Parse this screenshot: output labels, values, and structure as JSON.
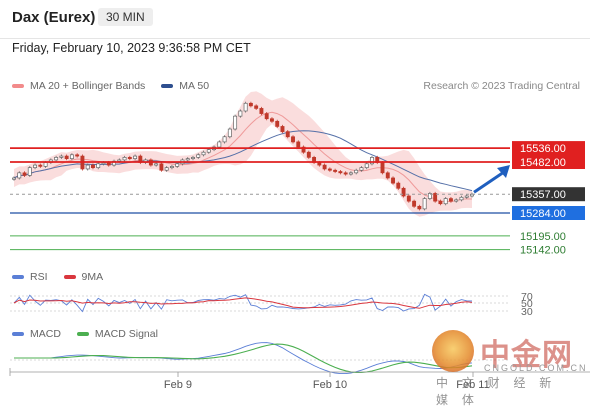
{
  "header": {
    "title": "Dax (Eurex)",
    "timeframe": "30 MIN"
  },
  "datetime": "Friday, February 10, 2023 9:36:58 PM CET",
  "legend": {
    "bollinger": {
      "label": "MA 20 + Bollinger Bands",
      "color": "#f28b8b"
    },
    "ma50": {
      "label": "MA 50",
      "color": "#2e4f8f"
    }
  },
  "credit": "Research © 2023 Trading Central",
  "rsi_legend": {
    "rsi": {
      "label": "RSI",
      "color": "#5b7fd6"
    },
    "ma": {
      "label": "9MA",
      "color": "#d9363e"
    }
  },
  "macd_legend": {
    "macd": {
      "label": "MACD",
      "color": "#5b7fd6"
    },
    "signal": {
      "label": "MACD Signal",
      "color": "#4caf50"
    }
  },
  "watermark": {
    "cn": "中金网",
    "en": "CNGOLD.COM.CN",
    "sub": "中 文 财 经 新 媒 体"
  },
  "chart_data": {
    "type": "candlestick",
    "x_labels": [
      "Feb 9",
      "Feb 10",
      "Feb 11"
    ],
    "price_levels": [
      {
        "value": 15536.0,
        "label": "15536.00",
        "kind": "resistance"
      },
      {
        "value": 15482.0,
        "label": "15482.00",
        "kind": "resistance"
      },
      {
        "value": 15357.0,
        "label": "15357.00",
        "kind": "last"
      },
      {
        "value": 15284.0,
        "label": "15284.00",
        "kind": "support"
      },
      {
        "value": 15195.0,
        "label": "15195.00",
        "kind": "support2"
      },
      {
        "value": 15142.0,
        "label": "15142.00",
        "kind": "support2"
      }
    ],
    "close": [
      15420,
      15440,
      15430,
      15460,
      15470,
      15465,
      15480,
      15490,
      15500,
      15505,
      15495,
      15510,
      15505,
      15455,
      15470,
      15460,
      15475,
      15480,
      15470,
      15485,
      15490,
      15500,
      15495,
      15505,
      15480,
      15490,
      15470,
      15475,
      15450,
      15460,
      15465,
      15475,
      15490,
      15495,
      15500,
      15510,
      15520,
      15530,
      15540,
      15560,
      15580,
      15610,
      15660,
      15680,
      15710,
      15700,
      15690,
      15670,
      15650,
      15640,
      15620,
      15600,
      15580,
      15560,
      15540,
      15520,
      15500,
      15480,
      15470,
      15455,
      15450,
      15445,
      15440,
      15435,
      15440,
      15450,
      15460,
      15475,
      15500,
      15480,
      15440,
      15420,
      15400,
      15380,
      15350,
      15330,
      15310,
      15300,
      15340,
      15360,
      15330,
      15320,
      15340,
      15330,
      15335,
      15345,
      15350,
      15357
    ],
    "rsi": {
      "levels": [
        70,
        50,
        30
      ]
    },
    "macd": {}
  }
}
